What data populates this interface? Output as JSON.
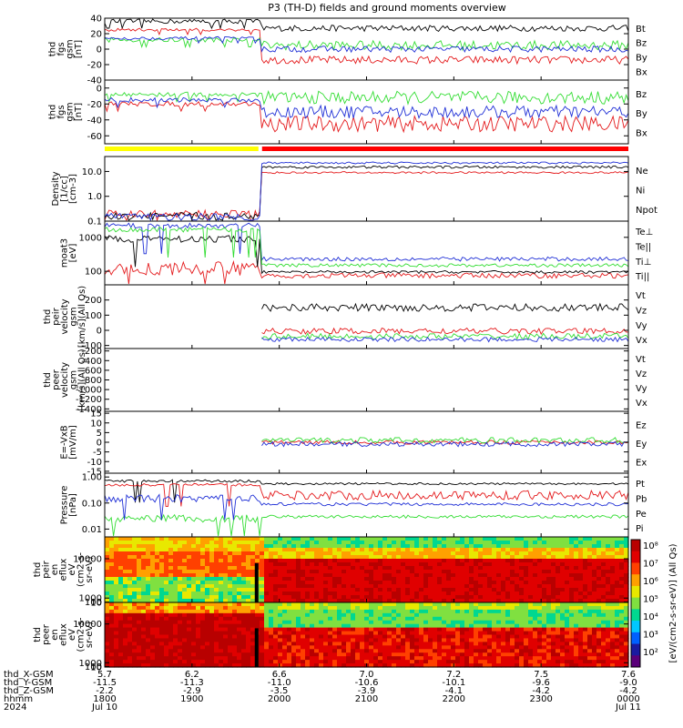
{
  "title": "P3 (TH-D) fields and ground moments overview",
  "colors": {
    "black": "#000000",
    "red": "#e41a1c",
    "green": "#33dd33",
    "blue": "#1f2fd6",
    "yellow": "#ffff00",
    "bar_red": "#ff0000"
  },
  "chart_data": [
    {
      "type": "line",
      "id": "fgs1",
      "ylabel": [
        "thd",
        "fgs",
        "gsm",
        "[nT]"
      ],
      "ylim": [
        -40,
        40
      ],
      "yticks": [
        "40",
        "20",
        "0",
        "-20",
        "-40"
      ],
      "series": [
        {
          "name": "Bt",
          "color": "black",
          "base_before": 36,
          "base_after": 27,
          "noise_before": 3,
          "noise_after": 4
        },
        {
          "name": "Bz",
          "color": "red",
          "base_before": 25,
          "base_after": -14,
          "noise_before": 2,
          "noise_after": 5
        },
        {
          "name": "By",
          "color": "green",
          "base_before": 12,
          "base_after": 5,
          "noise_before": 3,
          "noise_after": 6
        },
        {
          "name": "Bx",
          "color": "blue",
          "base_before": 14,
          "base_after": 0,
          "noise_before": 2,
          "noise_after": 4
        }
      ]
    },
    {
      "type": "line",
      "id": "fgs2",
      "ylabel": [
        "thd",
        "fgs",
        "gsm",
        "[nT]"
      ],
      "ylim": [
        -70,
        10
      ],
      "yticks": [
        "0",
        "-20",
        "-40",
        "-60"
      ],
      "series": [
        {
          "name": "Bz",
          "color": "red",
          "base_before": -20,
          "base_after": -45,
          "noise_before": 3,
          "noise_after": 10
        },
        {
          "name": "By",
          "color": "green",
          "base_before": -8,
          "base_after": -12,
          "noise_before": 3,
          "noise_after": 8
        },
        {
          "name": "Bx",
          "color": "blue",
          "base_before": -15,
          "base_after": -30,
          "noise_before": 3,
          "noise_after": 8
        }
      ]
    },
    {
      "type": "line",
      "id": "density",
      "log": true,
      "ylabel": [
        "Density",
        "[1/cc]",
        "[cm-3]"
      ],
      "ylim": [
        0.1,
        40
      ],
      "yticks": [
        "10.0",
        "1.0",
        "0.1"
      ],
      "series": [
        {
          "name": "Ne",
          "color": "red",
          "base_before": 0.2,
          "base_after": 9,
          "noise_before": 0.3,
          "noise_after": 0.08
        },
        {
          "name": "Ni",
          "color": "black",
          "base_before": 0.16,
          "base_after": 15,
          "noise_before": 0.3,
          "noise_after": 0.1
        },
        {
          "name": "Npot",
          "color": "blue",
          "base_before": 0.15,
          "base_after": 22,
          "noise_before": 0.3,
          "noise_after": 0.08
        }
      ]
    },
    {
      "type": "line",
      "id": "temp",
      "log": true,
      "ylabel": [
        "moat3",
        "[eV]"
      ],
      "ylim": [
        40,
        3000
      ],
      "yticks": [
        "1000",
        "100"
      ],
      "series": [
        {
          "name": "Te⊥",
          "color": "red",
          "base_before": 120,
          "base_after": 75,
          "noise_before": 0.4,
          "noise_after": 0.15
        },
        {
          "name": "Te||",
          "color": "black",
          "base_before": 900,
          "base_after": 95,
          "noise_before": 0.2,
          "noise_after": 0.08
        },
        {
          "name": "Ti⊥",
          "color": "blue",
          "base_before": 2200,
          "base_after": 230,
          "noise_before": 0.15,
          "noise_after": 0.12
        },
        {
          "name": "Ti||",
          "color": "green",
          "base_before": 1700,
          "base_after": 150,
          "noise_before": 0.15,
          "noise_after": 0.1
        }
      ]
    },
    {
      "type": "line",
      "id": "peir",
      "ylabel": [
        "thd",
        "peir",
        "velocity",
        "gsm",
        "[km/s](All Qs)"
      ],
      "ylim": [
        -120,
        300
      ],
      "yticks": [
        "200",
        "100",
        "0",
        "-100"
      ],
      "series": [
        {
          "name": "Vt",
          "color": "black",
          "base_after": 150,
          "noise_after": 25
        },
        {
          "name": "Vz",
          "color": "red",
          "base_after": -5,
          "noise_after": 20
        },
        {
          "name": "Vy",
          "color": "green",
          "base_after": -40,
          "noise_after": 20
        },
        {
          "name": "Vx",
          "color": "blue",
          "base_after": -60,
          "noise_after": 15
        }
      ]
    },
    {
      "type": "line",
      "id": "peer",
      "ylabel": [
        "thd",
        "peer",
        "velocity",
        "gsm",
        "[km/s](All Qs)"
      ],
      "ylim": [
        -1450,
        -150
      ],
      "yticks": [
        "-200",
        "-400",
        "-600",
        "-800",
        "-1000",
        "-1200",
        "-1400"
      ],
      "series": [
        {
          "name": "Vt",
          "color": "black"
        },
        {
          "name": "Vz",
          "color": "red"
        },
        {
          "name": "Vy",
          "color": "green"
        },
        {
          "name": "Vx",
          "color": "blue"
        }
      ]
    },
    {
      "type": "line",
      "id": "efield",
      "ylabel": [
        "E=-VxB",
        "[mV/m]"
      ],
      "ylim": [
        -16,
        16
      ],
      "yticks": [
        "15",
        "10",
        "5",
        "0",
        "-5",
        "-10",
        "-15"
      ],
      "series": [
        {
          "name": "Ez",
          "color": "red",
          "base_after": 0,
          "noise_after": 1
        },
        {
          "name": "Ey",
          "color": "green",
          "base_after": 1,
          "noise_after": 1.5
        },
        {
          "name": "Ex",
          "color": "blue",
          "base_after": -1,
          "noise_after": 1.2
        }
      ]
    },
    {
      "type": "line",
      "id": "pressure",
      "log": true,
      "ylabel": [
        "Pressure",
        "[nPa]"
      ],
      "ylim": [
        0.005,
        1.4
      ],
      "yticks": [
        "1.00",
        "0.10",
        "0.01"
      ],
      "series": [
        {
          "name": "Pt",
          "color": "black",
          "base_before": 0.7,
          "base_after": 0.55,
          "noise_before": 0.1,
          "noise_after": 0.08
        },
        {
          "name": "Pb",
          "color": "red",
          "base_before": 0.5,
          "base_after": 0.2,
          "noise_before": 0.1,
          "noise_after": 0.35
        },
        {
          "name": "Pe",
          "color": "green",
          "base_before": 0.025,
          "base_after": 0.03,
          "noise_before": 0.3,
          "noise_after": 0.12
        },
        {
          "name": "Pi",
          "color": "blue",
          "base_before": 0.15,
          "base_after": 0.09,
          "noise_before": 0.3,
          "noise_after": 0.12
        }
      ]
    },
    {
      "type": "heatmap",
      "id": "peir_spec",
      "ylabel": [
        "thd",
        "peir",
        "en",
        "eflux",
        "eV",
        "(cm2-s-",
        "sr-eV)"
      ],
      "ylim": [
        6,
        15000
      ],
      "yticks": [
        "10000",
        "1000",
        "100",
        "10"
      ]
    },
    {
      "type": "heatmap",
      "id": "peer_spec",
      "ylabel": [
        "thd",
        "peer",
        "en",
        "eflux",
        "eV",
        "(cm2-s-",
        "sr-eV)"
      ],
      "ylim": [
        6,
        15000
      ],
      "yticks": [
        "10000",
        "1000",
        "100",
        "10"
      ]
    }
  ],
  "colorbar": {
    "label": "[eV/(cm2-s-sr-eV)] (All Qs)",
    "ticks": [
      "10⁸",
      "10⁷",
      "10⁶",
      "10⁵",
      "10⁴",
      "10³",
      "10²"
    ]
  },
  "xaxis": {
    "ticks": [
      {
        "thd_x": "5.7",
        "thd_y": "-11.5",
        "thd_z": "-2.2",
        "hhmm": "1800",
        "date": "Jul 10"
      },
      {
        "thd_x": "6.2",
        "thd_y": "-11.3",
        "thd_z": "-2.9",
        "hhmm": "1900",
        "date": ""
      },
      {
        "thd_x": "6.6",
        "thd_y": "-11.0",
        "thd_z": "-3.5",
        "hhmm": "2000",
        "date": ""
      },
      {
        "thd_x": "7.0",
        "thd_y": "-10.6",
        "thd_z": "-3.9",
        "hhmm": "2100",
        "date": ""
      },
      {
        "thd_x": "7.2",
        "thd_y": "-10.1",
        "thd_z": "-4.1",
        "hhmm": "2200",
        "date": ""
      },
      {
        "thd_x": "7.5",
        "thd_y": "-9.6",
        "thd_z": "-4.2",
        "hhmm": "2300",
        "date": ""
      },
      {
        "thd_x": "7.6",
        "thd_y": "-9.0",
        "thd_z": "-4.2",
        "hhmm": "0000",
        "date": "Jul 11"
      }
    ],
    "row_labels": [
      "thd_X-GSM",
      "thd_Y-GSM",
      "thd_Z-GSM",
      "hhmm",
      "2024"
    ]
  }
}
